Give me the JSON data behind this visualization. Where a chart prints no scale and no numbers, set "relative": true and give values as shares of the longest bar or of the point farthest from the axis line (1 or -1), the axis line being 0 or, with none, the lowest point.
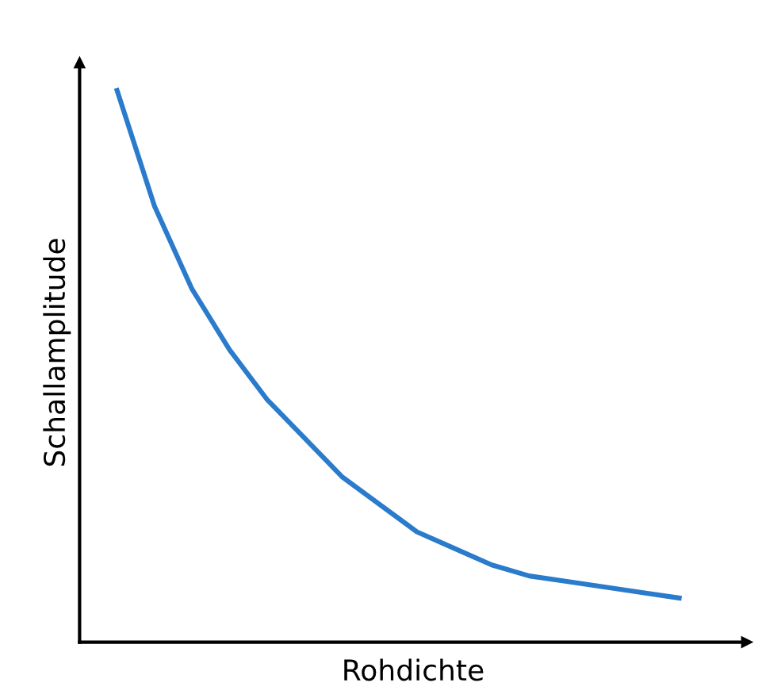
{
  "chart_data": {
    "type": "line",
    "relative": true,
    "xlabel": "Rohdichte",
    "ylabel": "Schallamplitude",
    "categories": [
      null,
      null,
      null,
      null,
      null,
      null,
      null,
      null,
      null,
      null,
      null,
      null,
      null,
      null,
      null,
      null
    ],
    "series": [
      {
        "color": "#2a7bcb",
        "values": [
          1.0,
          0.79,
          0.64,
          0.53,
          0.44,
          0.37,
          0.3,
          0.25,
          0.2,
          0.17,
          0.14,
          0.12,
          0.11,
          0.1,
          0.09,
          0.08
        ]
      }
    ],
    "grid": false,
    "legend": false,
    "marker": "none",
    "line_style": "solid"
  }
}
